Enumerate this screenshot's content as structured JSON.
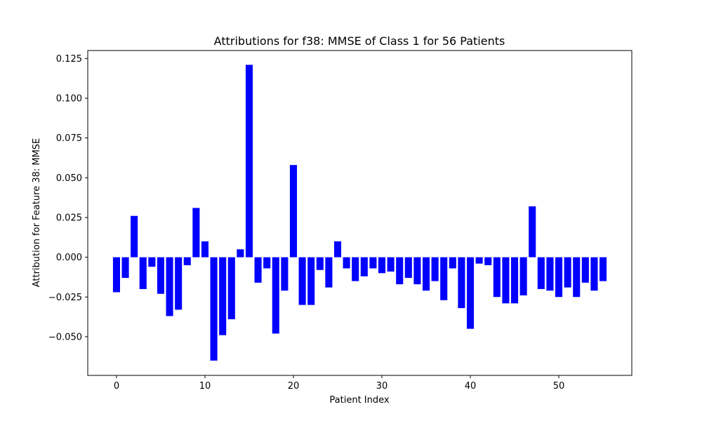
{
  "chart_data": {
    "type": "bar",
    "title": "Attributions for f38: MMSE of Class 1 for 56 Patients",
    "xlabel": "Patient Index",
    "ylabel": "Attribution for Feature 38: MMSE",
    "x": [
      0,
      1,
      2,
      3,
      4,
      5,
      6,
      7,
      8,
      9,
      10,
      11,
      12,
      13,
      14,
      15,
      16,
      17,
      18,
      19,
      20,
      21,
      22,
      23,
      24,
      25,
      26,
      27,
      28,
      29,
      30,
      31,
      32,
      33,
      34,
      35,
      36,
      37,
      38,
      39,
      40,
      41,
      42,
      43,
      44,
      45,
      46,
      47,
      48,
      49,
      50,
      51,
      52,
      53,
      54,
      55
    ],
    "values": [
      -0.022,
      -0.013,
      0.026,
      -0.02,
      -0.006,
      -0.023,
      -0.037,
      -0.033,
      -0.005,
      0.031,
      0.01,
      -0.065,
      -0.049,
      -0.039,
      0.005,
      0.121,
      -0.016,
      -0.007,
      -0.048,
      -0.021,
      0.058,
      -0.03,
      -0.03,
      -0.008,
      -0.019,
      0.01,
      -0.007,
      -0.015,
      -0.012,
      -0.007,
      -0.01,
      -0.009,
      -0.017,
      -0.013,
      -0.017,
      -0.021,
      -0.015,
      -0.027,
      -0.007,
      -0.032,
      -0.045,
      -0.004,
      -0.005,
      -0.025,
      -0.029,
      -0.029,
      -0.024,
      0.032,
      -0.02,
      -0.021,
      -0.025,
      -0.019,
      -0.025,
      -0.016,
      -0.021,
      -0.015
    ],
    "xlim": [
      -3.25,
      58.25
    ],
    "ylim": [
      -0.0743,
      0.13
    ],
    "xticks": [
      0,
      10,
      20,
      30,
      40,
      50
    ],
    "xtick_labels": [
      "0",
      "10",
      "20",
      "30",
      "40",
      "50"
    ],
    "yticks": [
      -0.05,
      -0.025,
      0.0,
      0.025,
      0.05,
      0.075,
      0.1,
      0.125
    ],
    "ytick_labels": [
      "−0.050",
      "−0.025",
      "0.000",
      "0.025",
      "0.050",
      "0.075",
      "0.100",
      "0.125"
    ],
    "bar_color": "#0000ff",
    "grid": false,
    "legend": "none"
  }
}
